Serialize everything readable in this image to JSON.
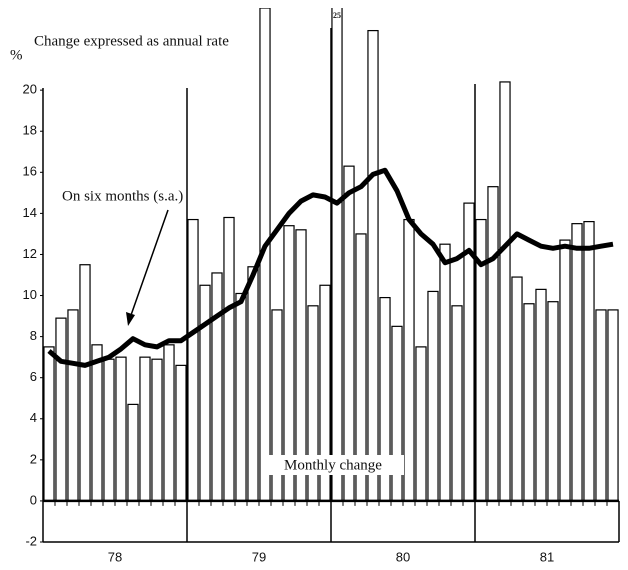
{
  "chart_data": {
    "type": "bar_line",
    "title": "Change expressed as annual rate",
    "y_unit": "%",
    "categories": [
      null,
      null,
      null,
      null,
      null,
      null,
      null,
      null,
      null,
      null,
      null,
      null,
      null,
      null,
      null,
      null,
      null,
      null,
      null,
      null,
      null,
      null,
      null,
      null,
      null,
      null,
      null,
      null,
      null,
      null,
      null,
      null,
      null,
      null,
      null,
      null,
      null,
      null,
      null,
      null,
      null,
      null,
      null,
      null,
      null,
      null,
      null,
      null
    ],
    "year_labels": [
      "78",
      "79",
      "80",
      "81"
    ],
    "series": [
      {
        "name": "Monthly change",
        "type": "bar",
        "color": "#ffffff",
        "values": [
          7.5,
          8.9,
          9.3,
          11.5,
          7.6,
          6.9,
          7.0,
          4.7,
          7.0,
          6.9,
          7.6,
          6.6,
          13.7,
          10.5,
          11.1,
          13.8,
          10.1,
          11.4,
          24,
          9.3,
          13.4,
          13.2,
          9.5,
          10.5,
          25,
          16.3,
          13.0,
          22.9,
          9.9,
          8.5,
          13.7,
          7.5,
          10.2,
          12.5,
          9.5,
          14.5,
          13.7,
          15.3,
          20.4,
          10.9,
          9.6,
          10.3,
          9.7,
          12.7,
          13.5,
          13.6,
          9.3,
          9.3
        ],
        "value_labels": [
          null,
          null,
          null,
          null,
          null,
          null,
          null,
          null,
          null,
          null,
          null,
          null,
          null,
          null,
          null,
          null,
          null,
          null,
          null,
          null,
          null,
          null,
          null,
          null,
          "25",
          null,
          null,
          null,
          null,
          null,
          null,
          null,
          null,
          null,
          null,
          null,
          null,
          null,
          null,
          null,
          null,
          null,
          null,
          null,
          null,
          null,
          null,
          null
        ]
      },
      {
        "name": "On six months (s.a.)",
        "type": "line",
        "color": "#000000",
        "values": [
          7.3,
          6.8,
          6.7,
          6.6,
          6.8,
          7.0,
          7.4,
          7.9,
          7.6,
          7.5,
          7.8,
          7.8,
          8.2,
          8.6,
          9.0,
          9.4,
          9.7,
          11.0,
          12.4,
          13.2,
          14.0,
          14.6,
          14.9,
          14.8,
          14.5,
          15.0,
          15.3,
          15.9,
          16.1,
          15.1,
          13.7,
          13.0,
          12.5,
          11.6,
          11.8,
          12.2,
          11.5,
          11.8,
          12.4,
          13.0,
          12.7,
          12.4,
          12.3,
          12.4,
          12.3,
          12.3,
          12.4,
          12.5
        ]
      }
    ],
    "ylim": [
      -2,
      24
    ],
    "yticks": [
      -2,
      0,
      2,
      4,
      6,
      8,
      10,
      12,
      14,
      16,
      18,
      20
    ]
  }
}
